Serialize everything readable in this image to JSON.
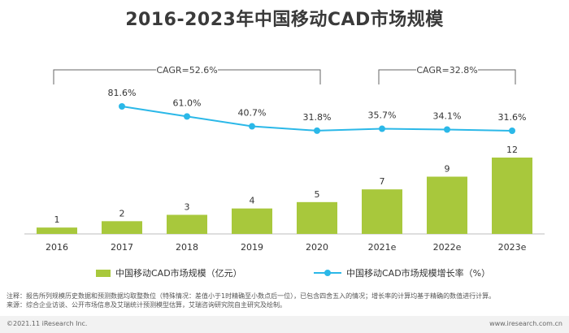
{
  "title": "2016-2023年中国移动CAD市场规模",
  "cagr": [
    {
      "label": "CAGR=52.6%",
      "from_index": 0,
      "to_index": 4
    },
    {
      "label": "CAGR=32.8%",
      "from_index": 5,
      "to_index": 7
    }
  ],
  "chart_data": {
    "type": "bar",
    "categories": [
      "2016",
      "2017",
      "2018",
      "2019",
      "2020",
      "2021e",
      "2022e",
      "2023e"
    ],
    "series": [
      {
        "name": "中国移动CAD市场规模（亿元）",
        "type": "bar",
        "values": [
          1,
          2,
          3,
          4,
          5,
          7,
          9,
          12
        ],
        "labels": [
          "1",
          "2",
          "3",
          "4",
          "5",
          "7",
          "9",
          "12"
        ],
        "color": "#a8c83c"
      },
      {
        "name": "中国移动CAD市场规模增长率（%）",
        "type": "line",
        "values": [
          null,
          81.6,
          61.0,
          40.7,
          31.8,
          35.7,
          34.1,
          31.6
        ],
        "labels": [
          "",
          "81.6%",
          "61.0%",
          "40.7%",
          "31.8%",
          "35.7%",
          "34.1%",
          "31.6%"
        ],
        "color": "#2bb8e8"
      }
    ],
    "bar_ylim": [
      0,
      15
    ],
    "line_ylim": [
      0,
      100
    ]
  },
  "notes": [
    "注释：报告所列规模历史数据和预测数据均取整数位（特殊情况：差值小于1时精确至小数点后一位），已包含四舍五入的情况；增长率的计算均基于精确的数值进行计算。",
    "来源：综合企业访谈、公开市场信息及艾瑞统计预测模型估算，艾瑞咨询研究院自主研究及绘制。"
  ],
  "footer": {
    "left": "©2021.11 iResearch Inc.",
    "right": "www.iresearch.com.cn"
  }
}
